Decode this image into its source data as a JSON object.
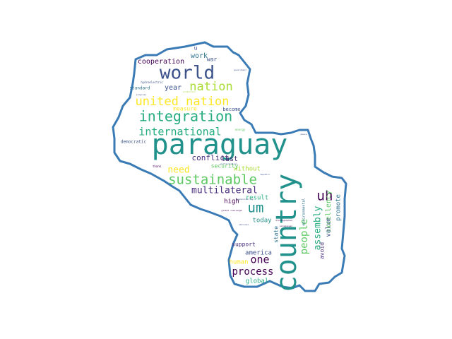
{
  "colors": {
    "outline": "#3b7bb5",
    "palette": [
      "#440154",
      "#3b528b",
      "#21918c",
      "#5ec962",
      "#fde725",
      "#2c728e",
      "#27ad81",
      "#aadc32",
      "#472d7b"
    ]
  },
  "words": [
    {
      "text": "paraguay",
      "size": 40,
      "color": "#21918c"
    },
    {
      "text": "country",
      "size": 40,
      "color": "#21918c",
      "rotate": true
    },
    {
      "text": "world",
      "size": 26,
      "color": "#3b528b"
    },
    {
      "text": "integration",
      "size": 20,
      "color": "#27ad81"
    },
    {
      "text": "united nation",
      "size": 17,
      "color": "#fde725"
    },
    {
      "text": "sustainable",
      "size": 19,
      "color": "#5ec962"
    },
    {
      "text": "nation",
      "size": 17,
      "color": "#aadc32"
    },
    {
      "text": "international",
      "size": 15,
      "color": "#27ad81"
    },
    {
      "text": "um",
      "size": 19,
      "color": "#21918c"
    },
    {
      "text": "uh",
      "size": 19,
      "color": "#440154"
    },
    {
      "text": "multilateral",
      "size": 13,
      "color": "#472d7b"
    },
    {
      "text": "people",
      "size": 14,
      "color": "#5ec962",
      "rotate": true
    },
    {
      "text": "assembly",
      "size": 13,
      "color": "#27ad81",
      "rotate": true
    },
    {
      "text": "process",
      "size": 14,
      "color": "#440154"
    },
    {
      "text": "one",
      "size": 15,
      "color": "#440154"
    },
    {
      "text": "need",
      "size": 13,
      "color": "#fde725"
    },
    {
      "text": "conflict",
      "size": 11,
      "color": "#472d7b"
    },
    {
      "text": "excellency",
      "size": 10,
      "color": "#5ec962",
      "rotate": true
    },
    {
      "text": "cooperation",
      "size": 10,
      "color": "#440154"
    },
    {
      "text": "year",
      "size": 10,
      "color": "#3b528b"
    },
    {
      "text": "work",
      "size": 10,
      "color": "#2c728e"
    },
    {
      "text": "war",
      "size": 8,
      "color": "#3b528b"
    },
    {
      "text": "u",
      "size": 8,
      "color": "#3b528b"
    },
    {
      "text": "measure",
      "size": 8,
      "color": "#fde725"
    },
    {
      "text": "become",
      "size": 7,
      "color": "#3b528b"
    },
    {
      "text": "last",
      "size": 10,
      "color": "#472d7b"
    },
    {
      "text": "without",
      "size": 9,
      "color": "#aadc32"
    },
    {
      "text": "security",
      "size": 8,
      "color": "#5ec962"
    },
    {
      "text": "result",
      "size": 9,
      "color": "#27ad81"
    },
    {
      "text": "high",
      "size": 9,
      "color": "#440154"
    },
    {
      "text": "today",
      "size": 9,
      "color": "#21918c"
    },
    {
      "text": "state",
      "size": 8,
      "color": "#2c728e",
      "rotate": true
    },
    {
      "text": "value",
      "size": 9,
      "color": "#3b528b",
      "rotate": true
    },
    {
      "text": "promote",
      "size": 9,
      "color": "#2c728e",
      "rotate": true
    },
    {
      "text": "avoid",
      "size": 8,
      "color": "#472d7b",
      "rotate": true
    },
    {
      "text": "support",
      "size": 8,
      "color": "#472d7b"
    },
    {
      "text": "america",
      "size": 9,
      "color": "#3b528b"
    },
    {
      "text": "human",
      "size": 9,
      "color": "#fde725"
    },
    {
      "text": "global",
      "size": 9,
      "color": "#27ad81"
    },
    {
      "text": "democratic",
      "size": 6,
      "color": "#3b528b"
    },
    {
      "text": "standard",
      "size": 6,
      "color": "#2c728e"
    },
    {
      "text": "hydroelectric",
      "size": 4,
      "color": "#3b528b"
    },
    {
      "text": "energy",
      "size": 4,
      "color": "#5ec962"
    },
    {
      "text": "thank",
      "size": 4,
      "color": "#440154"
    },
    {
      "text": "environmental",
      "size": 5,
      "color": "#2c728e",
      "rotate": true
    },
    {
      "text": "paraguayan",
      "size": 3,
      "color": "#440154"
    },
    {
      "text": "distinguished",
      "size": 3,
      "color": "#440154"
    },
    {
      "text": "republic",
      "size": 3,
      "color": "#3b528b"
    },
    {
      "text": "progress",
      "size": 3,
      "color": "#3b528b"
    },
    {
      "text": "global challenge",
      "size": 3,
      "color": "#440154"
    },
    {
      "text": "responsibility",
      "size": 3,
      "color": "#3b528b"
    },
    {
      "text": "government",
      "size": 3,
      "color": "#3b528b"
    },
    {
      "text": "production",
      "size": 3,
      "color": "#aadc32"
    },
    {
      "text": "peace",
      "size": 3,
      "color": "#3b528b"
    },
    {
      "text": "national",
      "size": 3,
      "color": "#3b528b"
    },
    {
      "text": "participation",
      "size": 3,
      "color": "#3b528b"
    }
  ]
}
